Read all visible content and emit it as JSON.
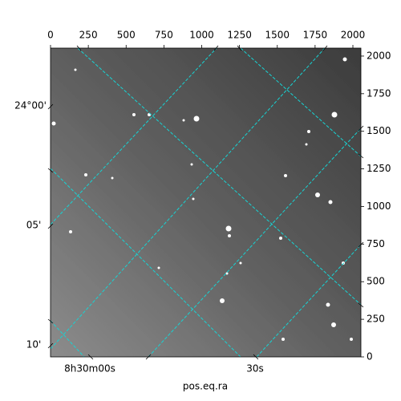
{
  "chart_data": {
    "type": "image",
    "xlabel": "pos.eq.ra",
    "xlim": [
      0,
      2053
    ],
    "xticks": [
      0,
      250,
      500,
      750,
      1000,
      1250,
      1500,
      1750,
      2000
    ],
    "ylim": [
      0,
      2053
    ],
    "yticks": [
      0,
      250,
      500,
      750,
      1000,
      1250,
      1500,
      1750,
      2000
    ],
    "dec_labels": [
      "24°00'",
      "05'",
      "10'"
    ],
    "ra_labels": [
      "8h30m00s",
      "30s"
    ],
    "grid": true,
    "grid_color": "#17d4d4"
  }
}
